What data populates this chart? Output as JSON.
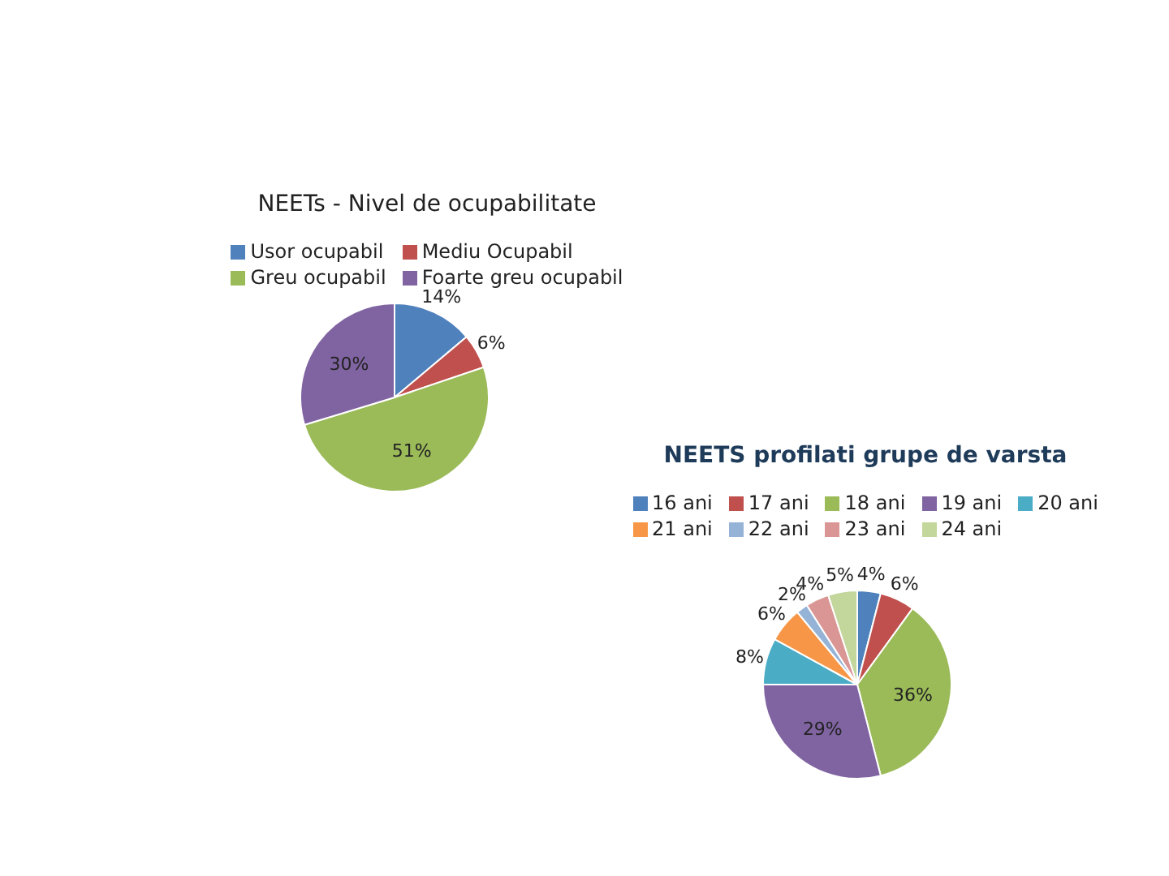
{
  "chart_data": [
    {
      "type": "pie",
      "title": "NEETs - Nivel de ocupabilitate",
      "categories": [
        "Usor ocupabil",
        "Mediu Ocupabil",
        "Greu ocupabil",
        "Foarte greu ocupabil"
      ],
      "values": [
        14,
        6,
        51,
        30
      ],
      "value_labels": [
        "14%",
        "6%",
        "51%",
        "30%"
      ],
      "colors": [
        "#4f81bd",
        "#c0504d",
        "#9bbb59",
        "#8064a2"
      ],
      "legend": "top"
    },
    {
      "type": "pie",
      "title": "NEETS profilati grupe de varsta",
      "categories": [
        "16 ani",
        "17 ani",
        "18 ani",
        "19 ani",
        "20 ani",
        "21 ani",
        "22 ani",
        "23 ani",
        "24 ani"
      ],
      "values": [
        4,
        6,
        36,
        29,
        8,
        6,
        2,
        4,
        5
      ],
      "value_labels": [
        "4%",
        "6%",
        "36%",
        "29%",
        "8%",
        "6%",
        "2%",
        "4%",
        "5%"
      ],
      "colors": [
        "#4f81bd",
        "#c0504d",
        "#9bbb59",
        "#8064a2",
        "#4bacc6",
        "#f79646",
        "#95b3d7",
        "#d99694",
        "#c3d69b"
      ],
      "legend": "top"
    }
  ]
}
